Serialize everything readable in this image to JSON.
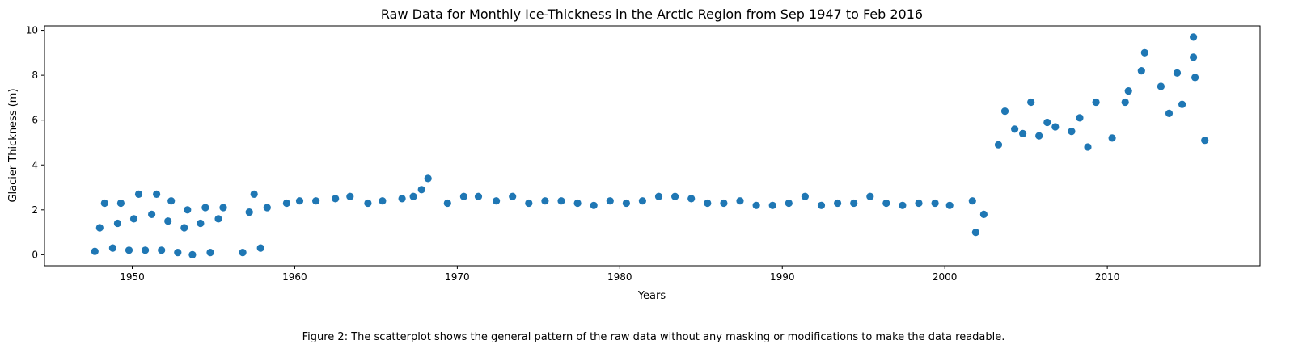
{
  "chart_data": {
    "type": "scatter",
    "title": "Raw Data for Monthly Ice-Thickness in the Arctic Region from Sep 1947 to Feb 2016",
    "xlabel": "Years",
    "ylabel": "Glacier Thickness (m)",
    "xlim": [
      1944.6,
      2019.4
    ],
    "ylim": [
      -0.49,
      10.2
    ],
    "xticks": [
      1950,
      1960,
      1970,
      1980,
      1990,
      2000,
      2010
    ],
    "xtick_labels": [
      "1950",
      "1960",
      "1970",
      "1980",
      "1990",
      "2000",
      "2010"
    ],
    "yticks": [
      0,
      2,
      4,
      6,
      8,
      10
    ],
    "ytick_labels": [
      "0",
      "2",
      "4",
      "6",
      "8",
      "10"
    ],
    "grid": false,
    "legend": "none",
    "color": "#1f77b4",
    "series": [
      {
        "points": [
          [
            1947.7,
            0.15
          ],
          [
            1948.0,
            1.2
          ],
          [
            1948.3,
            2.3
          ],
          [
            1948.8,
            0.3
          ],
          [
            1949.1,
            1.4
          ],
          [
            1949.3,
            2.3
          ],
          [
            1949.8,
            0.2
          ],
          [
            1950.1,
            1.6
          ],
          [
            1950.4,
            2.7
          ],
          [
            1950.8,
            0.2
          ],
          [
            1951.2,
            1.8
          ],
          [
            1951.5,
            2.7
          ],
          [
            1951.8,
            0.2
          ],
          [
            1952.2,
            1.5
          ],
          [
            1952.4,
            2.4
          ],
          [
            1952.8,
            0.1
          ],
          [
            1953.2,
            1.2
          ],
          [
            1953.4,
            2.0
          ],
          [
            1953.7,
            0.0
          ],
          [
            1954.2,
            1.4
          ],
          [
            1954.5,
            2.1
          ],
          [
            1954.8,
            0.1
          ],
          [
            1955.3,
            1.6
          ],
          [
            1955.6,
            2.1
          ],
          [
            1956.8,
            0.1
          ],
          [
            1957.2,
            1.9
          ],
          [
            1957.5,
            2.7
          ],
          [
            1957.9,
            0.3
          ],
          [
            1958.3,
            2.1
          ],
          [
            1959.5,
            2.3
          ],
          [
            1960.3,
            2.4
          ],
          [
            1961.3,
            2.4
          ],
          [
            1962.5,
            2.5
          ],
          [
            1963.4,
            2.6
          ],
          [
            1964.5,
            2.3
          ],
          [
            1965.4,
            2.4
          ],
          [
            1966.6,
            2.5
          ],
          [
            1967.3,
            2.6
          ],
          [
            1967.8,
            2.9
          ],
          [
            1968.2,
            3.4
          ],
          [
            1969.4,
            2.3
          ],
          [
            1970.4,
            2.6
          ],
          [
            1971.3,
            2.6
          ],
          [
            1972.4,
            2.4
          ],
          [
            1973.4,
            2.6
          ],
          [
            1974.4,
            2.3
          ],
          [
            1975.4,
            2.4
          ],
          [
            1976.4,
            2.4
          ],
          [
            1977.4,
            2.3
          ],
          [
            1978.4,
            2.2
          ],
          [
            1979.4,
            2.4
          ],
          [
            1980.4,
            2.3
          ],
          [
            1981.4,
            2.4
          ],
          [
            1982.4,
            2.6
          ],
          [
            1983.4,
            2.6
          ],
          [
            1984.4,
            2.5
          ],
          [
            1985.4,
            2.3
          ],
          [
            1986.4,
            2.3
          ],
          [
            1987.4,
            2.4
          ],
          [
            1988.4,
            2.2
          ],
          [
            1989.4,
            2.2
          ],
          [
            1990.4,
            2.3
          ],
          [
            1991.4,
            2.6
          ],
          [
            1992.4,
            2.2
          ],
          [
            1993.4,
            2.3
          ],
          [
            1994.4,
            2.3
          ],
          [
            1995.4,
            2.6
          ],
          [
            1996.4,
            2.3
          ],
          [
            1997.4,
            2.2
          ],
          [
            1998.4,
            2.3
          ],
          [
            1999.4,
            2.3
          ],
          [
            2000.3,
            2.2
          ],
          [
            2001.7,
            2.4
          ],
          [
            2001.9,
            1.0
          ],
          [
            2002.4,
            1.8
          ],
          [
            2003.3,
            4.9
          ],
          [
            2003.7,
            6.4
          ],
          [
            2004.3,
            5.6
          ],
          [
            2004.8,
            5.4
          ],
          [
            2005.3,
            6.8
          ],
          [
            2005.8,
            5.3
          ],
          [
            2006.3,
            5.9
          ],
          [
            2006.8,
            5.7
          ],
          [
            2007.8,
            5.5
          ],
          [
            2008.3,
            6.1
          ],
          [
            2008.8,
            4.8
          ],
          [
            2009.3,
            6.8
          ],
          [
            2010.3,
            5.2
          ],
          [
            2011.1,
            6.8
          ],
          [
            2011.3,
            7.3
          ],
          [
            2012.1,
            8.2
          ],
          [
            2012.3,
            9.0
          ],
          [
            2013.3,
            7.5
          ],
          [
            2013.8,
            6.3
          ],
          [
            2014.3,
            8.1
          ],
          [
            2014.6,
            6.7
          ],
          [
            2015.3,
            9.7
          ],
          [
            2015.3,
            8.8
          ],
          [
            2015.4,
            7.9
          ],
          [
            2016.0,
            5.1
          ]
        ]
      }
    ]
  },
  "caption": "Figure 2: The scatterplot shows the general pattern of the raw data without any masking or modifications to make the data readable."
}
